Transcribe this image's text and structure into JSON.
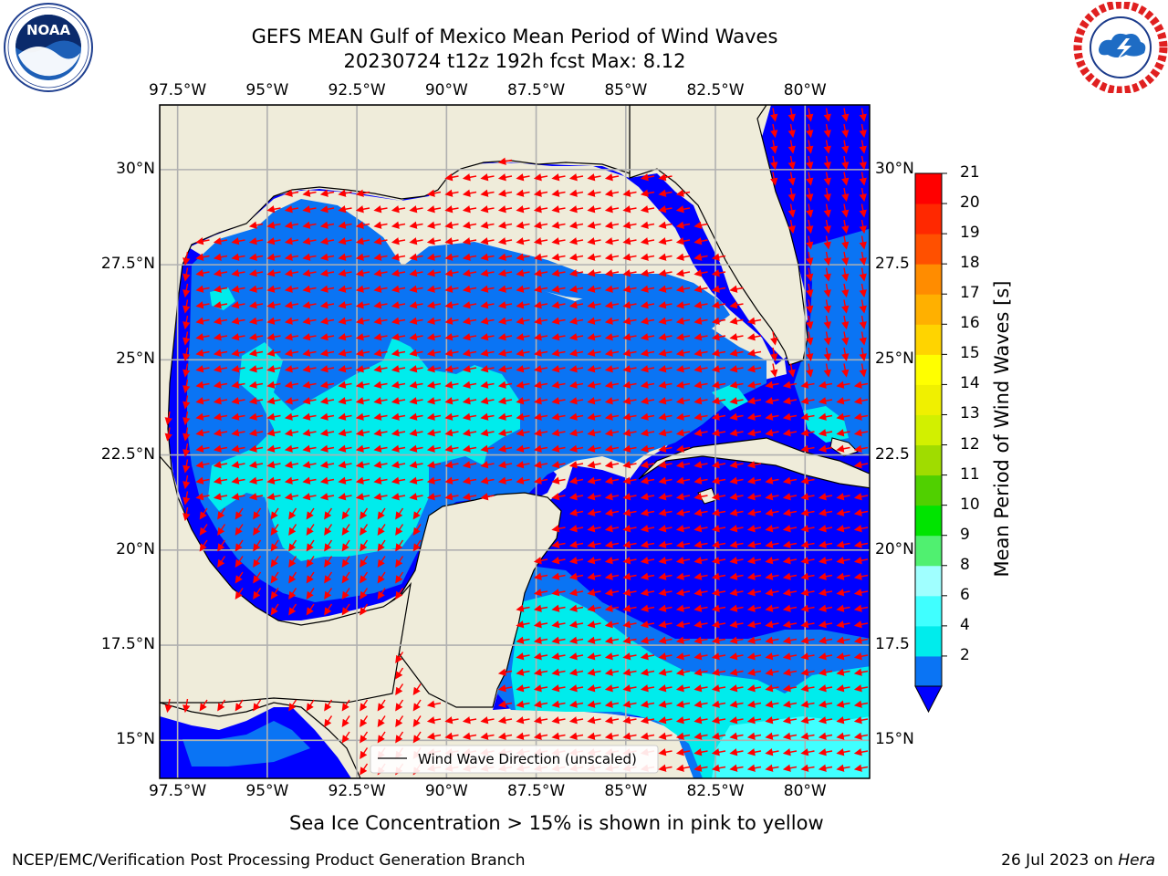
{
  "header": {
    "title_line1": "GEFS MEAN Gulf of Mexico Mean Period of Wind Waves",
    "title_line2": "20230724 t12z 192h fcst   Max: 8.12"
  },
  "logos": {
    "noaa_text": "NOAA",
    "noaa_ring": "NATIONAL OCEANIC AND ATMOSPHERIC ADMINISTRATION · U.S. DEPARTMENT OF COMMERCE",
    "nws_ring": "NATIONAL WEATHER SERVICE"
  },
  "axes": {
    "lon_ticks": [
      "97.5°W",
      "95°W",
      "92.5°W",
      "90°W",
      "87.5°W",
      "85°W",
      "82.5°W",
      "80°W"
    ],
    "lat_ticks": [
      "30°N",
      "27.5°N",
      "25°N",
      "22.5°N",
      "20°N",
      "17.5°N",
      "15°N"
    ],
    "lat_ticks_right": [
      "30°N",
      "27.5",
      "25°N",
      "22.5",
      "20°N",
      "17.5",
      "15°N"
    ],
    "lon_range": [
      -98,
      -78.2
    ],
    "lat_range": [
      14,
      31.7
    ]
  },
  "legend": {
    "label": "Wind Wave Direction (unscaled)"
  },
  "colorbar": {
    "label": "Mean Period of Wind Waves [s]",
    "ticks": [
      "21",
      "20",
      "19",
      "18",
      "17",
      "16",
      "15",
      "14",
      "13",
      "12",
      "11",
      "10",
      "9",
      "8",
      "6",
      "4",
      "2"
    ],
    "levels": [
      2,
      4,
      6,
      8,
      9,
      10,
      11,
      12,
      13,
      14,
      15,
      16,
      17,
      18,
      19,
      20,
      21
    ],
    "colors": [
      "#0a74f4",
      "#00ecec",
      "#40ffff",
      "#a0ffff",
      "#50f070",
      "#00e400",
      "#50d000",
      "#a0dc00",
      "#d2f000",
      "#f0f000",
      "#ffff00",
      "#ffd400",
      "#ffb000",
      "#ff8c00",
      "#ff5000",
      "#ff2800",
      "#ff0000"
    ],
    "under_color": "#0000ff"
  },
  "notes": {
    "sea_ice": "Sea Ice Concentration > 15% is shown in pink to yellow"
  },
  "footer": {
    "left": "NCEP/EMC/Verification Post Processing Product Generation Branch",
    "right_date": "26 Jul 2023 on ",
    "right_host": "Hera"
  }
}
